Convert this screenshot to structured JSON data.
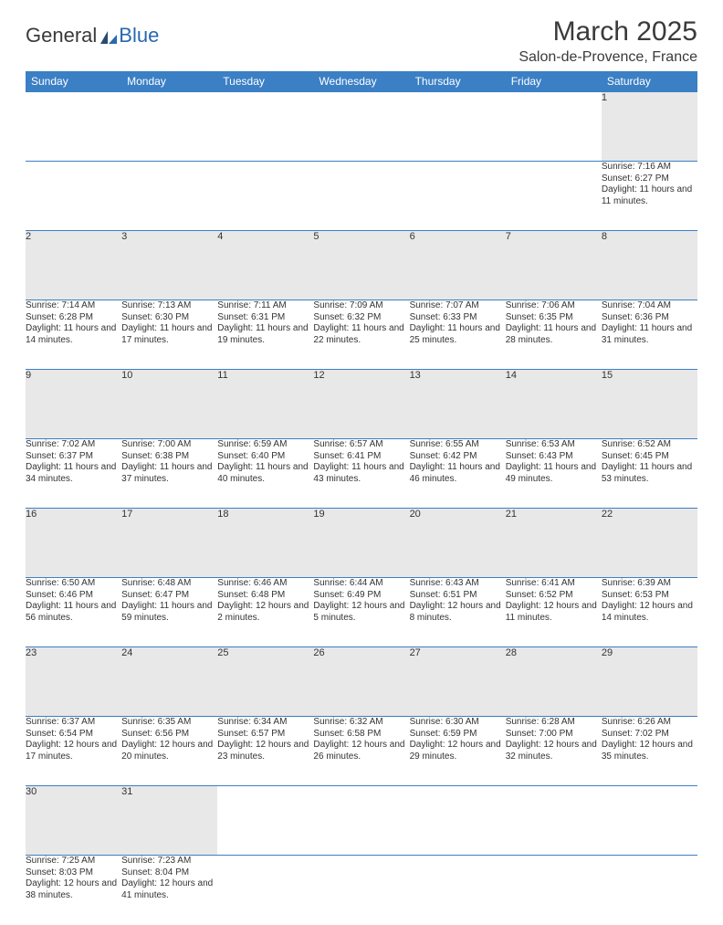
{
  "logo": {
    "part1": "General",
    "part2": "Blue"
  },
  "title": "March 2025",
  "location": "Salon-de-Provence, France",
  "colors": {
    "header_bg": "#3b7fc4",
    "header_text": "#ffffff",
    "daynum_bg": "#e8e8e8",
    "border": "#3b7fc4",
    "text": "#333333",
    "logo_blue": "#2968b0"
  },
  "typography": {
    "title_fontsize": 30,
    "location_fontsize": 16,
    "dayname_fontsize": 12,
    "cell_fontsize": 10
  },
  "day_names": [
    "Sunday",
    "Monday",
    "Tuesday",
    "Wednesday",
    "Thursday",
    "Friday",
    "Saturday"
  ],
  "weeks": [
    [
      null,
      null,
      null,
      null,
      null,
      null,
      {
        "n": "1",
        "sr": "Sunrise: 7:16 AM",
        "ss": "Sunset: 6:27 PM",
        "dl": "Daylight: 11 hours and 11 minutes."
      }
    ],
    [
      {
        "n": "2",
        "sr": "Sunrise: 7:14 AM",
        "ss": "Sunset: 6:28 PM",
        "dl": "Daylight: 11 hours and 14 minutes."
      },
      {
        "n": "3",
        "sr": "Sunrise: 7:13 AM",
        "ss": "Sunset: 6:30 PM",
        "dl": "Daylight: 11 hours and 17 minutes."
      },
      {
        "n": "4",
        "sr": "Sunrise: 7:11 AM",
        "ss": "Sunset: 6:31 PM",
        "dl": "Daylight: 11 hours and 19 minutes."
      },
      {
        "n": "5",
        "sr": "Sunrise: 7:09 AM",
        "ss": "Sunset: 6:32 PM",
        "dl": "Daylight: 11 hours and 22 minutes."
      },
      {
        "n": "6",
        "sr": "Sunrise: 7:07 AM",
        "ss": "Sunset: 6:33 PM",
        "dl": "Daylight: 11 hours and 25 minutes."
      },
      {
        "n": "7",
        "sr": "Sunrise: 7:06 AM",
        "ss": "Sunset: 6:35 PM",
        "dl": "Daylight: 11 hours and 28 minutes."
      },
      {
        "n": "8",
        "sr": "Sunrise: 7:04 AM",
        "ss": "Sunset: 6:36 PM",
        "dl": "Daylight: 11 hours and 31 minutes."
      }
    ],
    [
      {
        "n": "9",
        "sr": "Sunrise: 7:02 AM",
        "ss": "Sunset: 6:37 PM",
        "dl": "Daylight: 11 hours and 34 minutes."
      },
      {
        "n": "10",
        "sr": "Sunrise: 7:00 AM",
        "ss": "Sunset: 6:38 PM",
        "dl": "Daylight: 11 hours and 37 minutes."
      },
      {
        "n": "11",
        "sr": "Sunrise: 6:59 AM",
        "ss": "Sunset: 6:40 PM",
        "dl": "Daylight: 11 hours and 40 minutes."
      },
      {
        "n": "12",
        "sr": "Sunrise: 6:57 AM",
        "ss": "Sunset: 6:41 PM",
        "dl": "Daylight: 11 hours and 43 minutes."
      },
      {
        "n": "13",
        "sr": "Sunrise: 6:55 AM",
        "ss": "Sunset: 6:42 PM",
        "dl": "Daylight: 11 hours and 46 minutes."
      },
      {
        "n": "14",
        "sr": "Sunrise: 6:53 AM",
        "ss": "Sunset: 6:43 PM",
        "dl": "Daylight: 11 hours and 49 minutes."
      },
      {
        "n": "15",
        "sr": "Sunrise: 6:52 AM",
        "ss": "Sunset: 6:45 PM",
        "dl": "Daylight: 11 hours and 53 minutes."
      }
    ],
    [
      {
        "n": "16",
        "sr": "Sunrise: 6:50 AM",
        "ss": "Sunset: 6:46 PM",
        "dl": "Daylight: 11 hours and 56 minutes."
      },
      {
        "n": "17",
        "sr": "Sunrise: 6:48 AM",
        "ss": "Sunset: 6:47 PM",
        "dl": "Daylight: 11 hours and 59 minutes."
      },
      {
        "n": "18",
        "sr": "Sunrise: 6:46 AM",
        "ss": "Sunset: 6:48 PM",
        "dl": "Daylight: 12 hours and 2 minutes."
      },
      {
        "n": "19",
        "sr": "Sunrise: 6:44 AM",
        "ss": "Sunset: 6:49 PM",
        "dl": "Daylight: 12 hours and 5 minutes."
      },
      {
        "n": "20",
        "sr": "Sunrise: 6:43 AM",
        "ss": "Sunset: 6:51 PM",
        "dl": "Daylight: 12 hours and 8 minutes."
      },
      {
        "n": "21",
        "sr": "Sunrise: 6:41 AM",
        "ss": "Sunset: 6:52 PM",
        "dl": "Daylight: 12 hours and 11 minutes."
      },
      {
        "n": "22",
        "sr": "Sunrise: 6:39 AM",
        "ss": "Sunset: 6:53 PM",
        "dl": "Daylight: 12 hours and 14 minutes."
      }
    ],
    [
      {
        "n": "23",
        "sr": "Sunrise: 6:37 AM",
        "ss": "Sunset: 6:54 PM",
        "dl": "Daylight: 12 hours and 17 minutes."
      },
      {
        "n": "24",
        "sr": "Sunrise: 6:35 AM",
        "ss": "Sunset: 6:56 PM",
        "dl": "Daylight: 12 hours and 20 minutes."
      },
      {
        "n": "25",
        "sr": "Sunrise: 6:34 AM",
        "ss": "Sunset: 6:57 PM",
        "dl": "Daylight: 12 hours and 23 minutes."
      },
      {
        "n": "26",
        "sr": "Sunrise: 6:32 AM",
        "ss": "Sunset: 6:58 PM",
        "dl": "Daylight: 12 hours and 26 minutes."
      },
      {
        "n": "27",
        "sr": "Sunrise: 6:30 AM",
        "ss": "Sunset: 6:59 PM",
        "dl": "Daylight: 12 hours and 29 minutes."
      },
      {
        "n": "28",
        "sr": "Sunrise: 6:28 AM",
        "ss": "Sunset: 7:00 PM",
        "dl": "Daylight: 12 hours and 32 minutes."
      },
      {
        "n": "29",
        "sr": "Sunrise: 6:26 AM",
        "ss": "Sunset: 7:02 PM",
        "dl": "Daylight: 12 hours and 35 minutes."
      }
    ],
    [
      {
        "n": "30",
        "sr": "Sunrise: 7:25 AM",
        "ss": "Sunset: 8:03 PM",
        "dl": "Daylight: 12 hours and 38 minutes."
      },
      {
        "n": "31",
        "sr": "Sunrise: 7:23 AM",
        "ss": "Sunset: 8:04 PM",
        "dl": "Daylight: 12 hours and 41 minutes."
      },
      null,
      null,
      null,
      null,
      null
    ]
  ]
}
